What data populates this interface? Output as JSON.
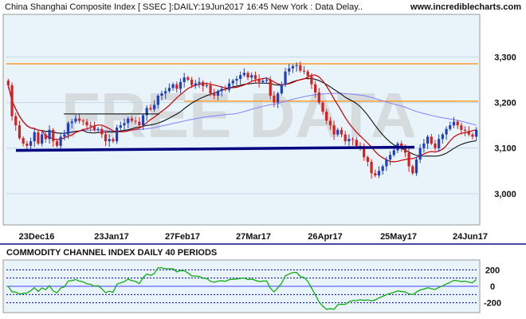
{
  "header": {
    "title": "China Shanghai Composite Index [ SSEC ]:DAILY:19Jun2017 16:45 New York : Data Delay..",
    "site": "www.incrediblecharts.com"
  },
  "watermark": "FREE DATA",
  "colors": {
    "panel_bg": "#e8f3fa",
    "up_candle": "#1f3fbf",
    "down_candle": "#d62020",
    "ma_short": "#cc0000",
    "ma_long": "#000000",
    "ma_100": "#8080ff",
    "support_line": "#000080",
    "resistance": "#ff8c00",
    "cci_line": "#00aa00",
    "cci_zero": "#4040ff",
    "cci_band": "#0000aa"
  },
  "chart_data": [
    {
      "type": "candlestick",
      "series_name": "China Shanghai Composite Index [ SSEC ]",
      "x_ticks": [
        "23Dec16",
        "23Jan17",
        "27Feb17",
        "27Mar17",
        "26Apr17",
        "25May17",
        "24Jun17"
      ],
      "y_ticks": [
        3000,
        3100,
        3200,
        3300
      ],
      "y_tick_labels": [
        "3,000",
        "3,100",
        "3,200",
        "3,300"
      ],
      "ylim": [
        2935,
        3390
      ],
      "resistance_levels": [
        3285,
        3203
      ],
      "support_line": {
        "from_value": 3095,
        "to_value": 3102
      },
      "trendline_2017": {
        "value": 3175
      },
      "closes": [
        3238,
        3170,
        3150,
        3122,
        3110,
        3105,
        3115,
        3135,
        3110,
        3130,
        3120,
        3140,
        3115,
        3105,
        3125,
        3130,
        3155,
        3158,
        3165,
        3160,
        3158,
        3150,
        3148,
        3140,
        3142,
        3130,
        3115,
        3120,
        3115,
        3145,
        3150,
        3155,
        3165,
        3160,
        3158,
        3150,
        3172,
        3188,
        3185,
        3195,
        3215,
        3220,
        3225,
        3232,
        3240,
        3230,
        3245,
        3255,
        3250,
        3238,
        3242,
        3245,
        3236,
        3238,
        3220,
        3215,
        3225,
        3230,
        3228,
        3242,
        3248,
        3252,
        3260,
        3265,
        3255,
        3260,
        3252,
        3245,
        3248,
        3250,
        3215,
        3200,
        3220,
        3240,
        3268,
        3275,
        3280,
        3282,
        3270,
        3268,
        3258,
        3240,
        3222,
        3200,
        3180,
        3160,
        3150,
        3130,
        3140,
        3130,
        3115,
        3120,
        3118,
        3105,
        3100,
        3080,
        3070,
        3045,
        3040,
        3050,
        3060,
        3075,
        3085,
        3095,
        3110,
        3100,
        3090,
        3060,
        3045,
        3075,
        3100,
        3110,
        3125,
        3110,
        3100,
        3120,
        3130,
        3142,
        3150,
        3158,
        3150,
        3140,
        3138,
        3130,
        3125,
        3140
      ]
    },
    {
      "type": "line",
      "title": "COMMODITY CHANNEL INDEX DAILY 40 PERIODS",
      "y_ticks": [
        200,
        0,
        -200
      ],
      "y_tick_labels": [
        "200",
        "0",
        "-200"
      ],
      "ylim": [
        -300,
        300
      ],
      "bands": [
        200,
        100,
        -100,
        -200
      ]
    }
  ]
}
